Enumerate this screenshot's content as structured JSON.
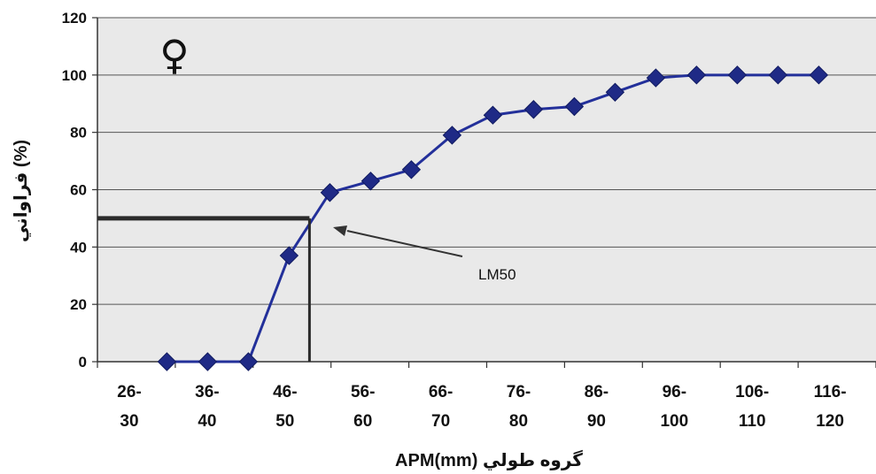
{
  "chart_data": {
    "type": "line",
    "title": "",
    "xlabel": "گروه طولي APM(mm)",
    "ylabel": "(%) فراواني",
    "ylim": [
      0,
      120
    ],
    "yticks": [
      "0",
      "20",
      "40",
      "60",
      "80",
      "100",
      "120"
    ],
    "x_tick_labels": [
      {
        "top": "26-",
        "bottom": "30"
      },
      {
        "top": "36-",
        "bottom": "40"
      },
      {
        "top": "46-",
        "bottom": "50"
      },
      {
        "top": "56-",
        "bottom": "60"
      },
      {
        "top": "66-",
        "bottom": "70"
      },
      {
        "top": "76-",
        "bottom": "80"
      },
      {
        "top": "86-",
        "bottom": "90"
      },
      {
        "top": "96-",
        "bottom": "100"
      },
      {
        "top": "106-",
        "bottom": "110"
      },
      {
        "top": "116-",
        "bottom": "120"
      }
    ],
    "series": [
      {
        "color": "#23309a",
        "marker": "diamond",
        "x": [
          33,
          38,
          43,
          48,
          53,
          58,
          63,
          68,
          73,
          78,
          83,
          88,
          93,
          98,
          103,
          108,
          113
        ],
        "values": [
          0,
          0,
          0,
          37,
          59,
          63,
          67,
          79,
          86,
          88,
          89,
          94,
          99,
          100,
          100,
          100,
          100
        ]
      }
    ],
    "reference": {
      "y": 50,
      "x": 50.5,
      "label": "LM50"
    },
    "symbol": "♀",
    "grid": true,
    "plot_bg": "#e9e9e9"
  }
}
